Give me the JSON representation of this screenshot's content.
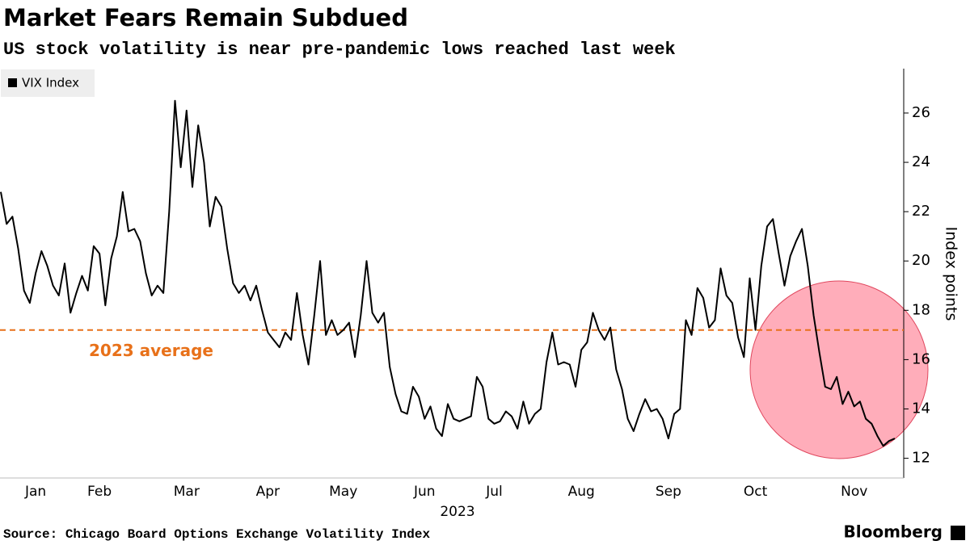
{
  "chart_data": {
    "type": "line",
    "title": "Market Fears Remain Subdued",
    "subtitle": "US stock volatility is near pre-pandemic lows reached last week",
    "source": "Source: Chicago Board Options Exchange Volatility Index",
    "brand": "Bloomberg",
    "ylabel": "Index points",
    "xlabel": "2023",
    "categories": [
      null,
      null,
      null,
      null,
      null,
      null,
      "Jan",
      null,
      null,
      null,
      null,
      null,
      null,
      null,
      null,
      null,
      null,
      "Feb",
      null,
      null,
      null,
      null,
      null,
      null,
      null,
      null,
      null,
      null,
      null,
      null,
      null,
      null,
      "Mar",
      null,
      null,
      null,
      null,
      null,
      null,
      null,
      null,
      null,
      null,
      null,
      null,
      null,
      "Apr",
      null,
      null,
      null,
      null,
      null,
      null,
      null,
      null,
      null,
      null,
      null,
      null,
      "May",
      null,
      null,
      null,
      null,
      null,
      null,
      null,
      null,
      null,
      null,
      null,
      null,
      null,
      "Jun",
      null,
      null,
      null,
      null,
      null,
      null,
      null,
      null,
      null,
      null,
      null,
      "Jul",
      null,
      null,
      null,
      null,
      null,
      null,
      null,
      null,
      null,
      null,
      null,
      null,
      null,
      null,
      "Aug",
      null,
      null,
      null,
      null,
      null,
      null,
      null,
      null,
      null,
      null,
      null,
      null,
      null,
      null,
      "Sep",
      null,
      null,
      null,
      null,
      null,
      null,
      null,
      null,
      null,
      null,
      null,
      null,
      null,
      null,
      "Oct",
      null,
      null,
      null,
      null,
      null,
      null,
      null,
      null,
      null,
      null,
      null,
      null,
      null,
      null,
      null,
      null,
      "Nov",
      null,
      null,
      null,
      null,
      null,
      null,
      null
    ],
    "series": [
      {
        "name": "VIX Index",
        "color": "#000000",
        "values": [
          22.8,
          21.5,
          21.8,
          20.5,
          18.8,
          18.3,
          19.5,
          20.4,
          19.8,
          19.0,
          18.6,
          19.9,
          17.9,
          18.7,
          19.4,
          18.8,
          20.6,
          20.3,
          18.2,
          20.1,
          21.0,
          22.8,
          21.2,
          21.3,
          20.8,
          19.5,
          18.6,
          19.0,
          18.7,
          22.0,
          26.5,
          23.8,
          26.1,
          23.0,
          25.5,
          24.0,
          21.4,
          22.6,
          22.2,
          20.5,
          19.1,
          18.7,
          19.0,
          18.4,
          19.0,
          18.0,
          17.1,
          16.8,
          16.5,
          17.1,
          16.8,
          18.7,
          17.0,
          15.8,
          17.8,
          20.0,
          17.0,
          17.6,
          17.0,
          17.2,
          17.5,
          16.1,
          17.8,
          20.0,
          17.9,
          17.5,
          17.9,
          15.7,
          14.6,
          13.9,
          13.8,
          14.9,
          14.5,
          13.6,
          14.1,
          13.2,
          12.9,
          14.2,
          13.6,
          13.5,
          13.6,
          13.7,
          15.3,
          14.9,
          13.6,
          13.4,
          13.5,
          13.9,
          13.7,
          13.2,
          14.3,
          13.4,
          13.8,
          14.0,
          15.9,
          17.1,
          15.8,
          15.9,
          15.8,
          14.9,
          16.4,
          16.7,
          17.9,
          17.2,
          16.8,
          17.3,
          15.6,
          14.8,
          13.6,
          13.1,
          13.8,
          14.4,
          13.9,
          14.0,
          13.6,
          12.8,
          13.8,
          14.0,
          17.6,
          17.0,
          18.9,
          18.5,
          17.3,
          17.6,
          19.7,
          18.6,
          18.3,
          16.9,
          16.1,
          19.3,
          17.2,
          19.8,
          21.4,
          21.7,
          20.3,
          19.0,
          20.2,
          20.8,
          21.3,
          19.8,
          17.8,
          16.3,
          14.9,
          14.8,
          15.3,
          14.2,
          14.7,
          14.1,
          14.3,
          13.6,
          13.4,
          12.9,
          12.5,
          12.7,
          12.8
        ]
      }
    ],
    "average_line": {
      "value": 17.2,
      "label": "2023 average",
      "color": "#e8711a"
    },
    "ylim": [
      11.2,
      27.8
    ],
    "yticks": [
      12,
      14,
      16,
      18,
      20,
      22,
      24,
      26
    ],
    "grid": false
  }
}
